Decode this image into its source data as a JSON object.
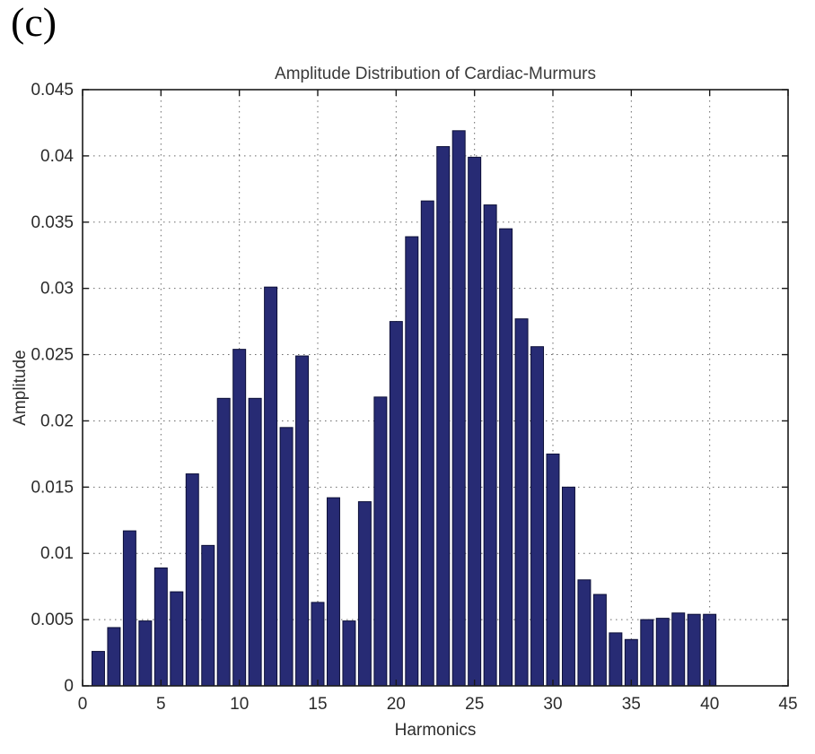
{
  "panel_label": "(c)",
  "chart_data": {
    "type": "bar",
    "title": "Amplitude Distribution of Cardiac-Murmurs",
    "xlabel": "Harmonics",
    "ylabel": "Amplitude",
    "xlim": [
      0,
      45
    ],
    "ylim": [
      0,
      0.045
    ],
    "xticks": [
      0,
      5,
      10,
      15,
      20,
      25,
      30,
      35,
      40,
      45
    ],
    "yticks": [
      0,
      0.005,
      0.01,
      0.015,
      0.02,
      0.025,
      0.03,
      0.035,
      0.04,
      0.045
    ],
    "grid": true,
    "legend": "none",
    "bar_color": "#272b74",
    "bar_edge_color": "#0c0f38",
    "bar_width_fraction": 0.8,
    "x": [
      1,
      2,
      3,
      4,
      5,
      6,
      7,
      8,
      9,
      10,
      11,
      12,
      13,
      14,
      15,
      16,
      17,
      18,
      19,
      20,
      21,
      22,
      23,
      24,
      25,
      26,
      27,
      28,
      29,
      30,
      31,
      32,
      33,
      34,
      35,
      36,
      37,
      38,
      39,
      40
    ],
    "values": [
      0.0026,
      0.0044,
      0.0117,
      0.0049,
      0.0089,
      0.0071,
      0.016,
      0.0106,
      0.0217,
      0.0254,
      0.0217,
      0.0301,
      0.0195,
      0.0249,
      0.0063,
      0.0142,
      0.0049,
      0.0139,
      0.0218,
      0.0275,
      0.0339,
      0.0366,
      0.0407,
      0.0419,
      0.0399,
      0.0363,
      0.0345,
      0.0277,
      0.0256,
      0.0175,
      0.015,
      0.008,
      0.0069,
      0.004,
      0.0035,
      0.005,
      0.0051,
      0.0055,
      0.0054,
      0.0054
    ]
  }
}
